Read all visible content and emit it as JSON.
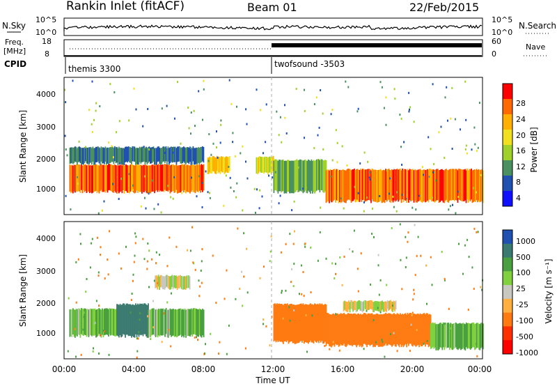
{
  "header": {
    "station": "Rankin Inlet (fitACF)",
    "beam": "Beam 01",
    "date": "22/Feb/2015"
  },
  "noise_panel": {
    "left_label": "N.Sky",
    "right_label": "N.Search",
    "ticks_left": [
      "10^5",
      "10^0"
    ],
    "ticks_right": [
      "10^5",
      "10^0"
    ]
  },
  "freq_panel": {
    "left_label_line1": "Freq.",
    "left_label_line2": "[MHz]",
    "right_label": "Nave",
    "ticks_left": [
      "18",
      "8"
    ],
    "ticks_right": [
      "60",
      "0"
    ]
  },
  "cpid": {
    "label": "CPID",
    "programs": [
      {
        "name": "themis 3300",
        "start_hour": 0.1
      },
      {
        "name": "twofsound -3503",
        "start_hour": 11.9
      }
    ]
  },
  "power_panel": {
    "ylabel": "Slant Range [km]",
    "yticks": [
      "4000",
      "3000",
      "2000",
      "1000"
    ],
    "colorbar_label": "Power [dB]",
    "colorbar_ticks": [
      "28",
      "24",
      "20",
      "16",
      "12",
      "8",
      "4"
    ],
    "colors": [
      "#ff0000",
      "#ff6a00",
      "#ffb000",
      "#f0e020",
      "#a0d02a",
      "#4a9060",
      "#2050b0",
      "#1010ff"
    ]
  },
  "velocity_panel": {
    "ylabel": "Slant Range [km]",
    "yticks": [
      "4000",
      "3000",
      "2000",
      "1000"
    ],
    "colorbar_label": "Velocity [m s⁻¹]",
    "colorbar_ticks": [
      "1000",
      "500",
      "100",
      "25",
      "-25",
      "-100",
      "-500",
      "-1000"
    ],
    "colors": [
      "#2050b0",
      "#3a7a70",
      "#4aa040",
      "#80d040",
      "#c8c8c0",
      "#ffb040",
      "#ff7a10",
      "#ff3000",
      "#ff0000"
    ]
  },
  "xaxis": {
    "label": "Time UT",
    "ticks": [
      "00:00",
      "04:00",
      "08:00",
      "12:00",
      "16:00",
      "20:00",
      "00:00"
    ]
  },
  "chart_data": {
    "type": "heatmap",
    "x_range_hours": [
      0,
      24
    ],
    "y_range_km": [
      180,
      4500
    ],
    "power_regions": [
      {
        "t0": 0.3,
        "t1": 8.0,
        "r0": 900,
        "r1": 1750,
        "value_db": 26
      },
      {
        "t0": 8.2,
        "t1": 9.5,
        "r0": 1500,
        "r1": 2000,
        "value_db": 20
      },
      {
        "t0": 11.0,
        "t1": 12.0,
        "r0": 1500,
        "r1": 2000,
        "value_db": 18
      },
      {
        "t0": 12.0,
        "t1": 15.0,
        "r0": 900,
        "r1": 1900,
        "value_db": 12
      },
      {
        "t0": 15.0,
        "t1": 24.0,
        "r0": 600,
        "r1": 1600,
        "value_db": 26
      },
      {
        "t0": 0.3,
        "t1": 8.0,
        "r0": 1800,
        "r1": 2300,
        "value_db": 8
      }
    ],
    "velocity_regions": [
      {
        "t0": 0.3,
        "t1": 3.0,
        "r0": 900,
        "r1": 1750,
        "value_ms": 100
      },
      {
        "t0": 3.0,
        "t1": 4.8,
        "r0": 900,
        "r1": 1900,
        "value_ms": 800
      },
      {
        "t0": 4.8,
        "t1": 8.0,
        "r0": 900,
        "r1": 1750,
        "value_ms": 100
      },
      {
        "t0": 5.2,
        "t1": 7.2,
        "r0": 2400,
        "r1": 2800,
        "value_ms": 0
      },
      {
        "t0": 12.0,
        "t1": 15.0,
        "r0": 700,
        "r1": 1900,
        "value_ms": -200
      },
      {
        "t0": 15.0,
        "t1": 21.0,
        "r0": 600,
        "r1": 1600,
        "value_ms": -300
      },
      {
        "t0": 16.0,
        "t1": 19.0,
        "r0": 1700,
        "r1": 2000,
        "value_ms": 0
      },
      {
        "t0": 21.0,
        "t1": 24.0,
        "r0": 500,
        "r1": 1300,
        "value_ms": 100
      }
    ]
  }
}
